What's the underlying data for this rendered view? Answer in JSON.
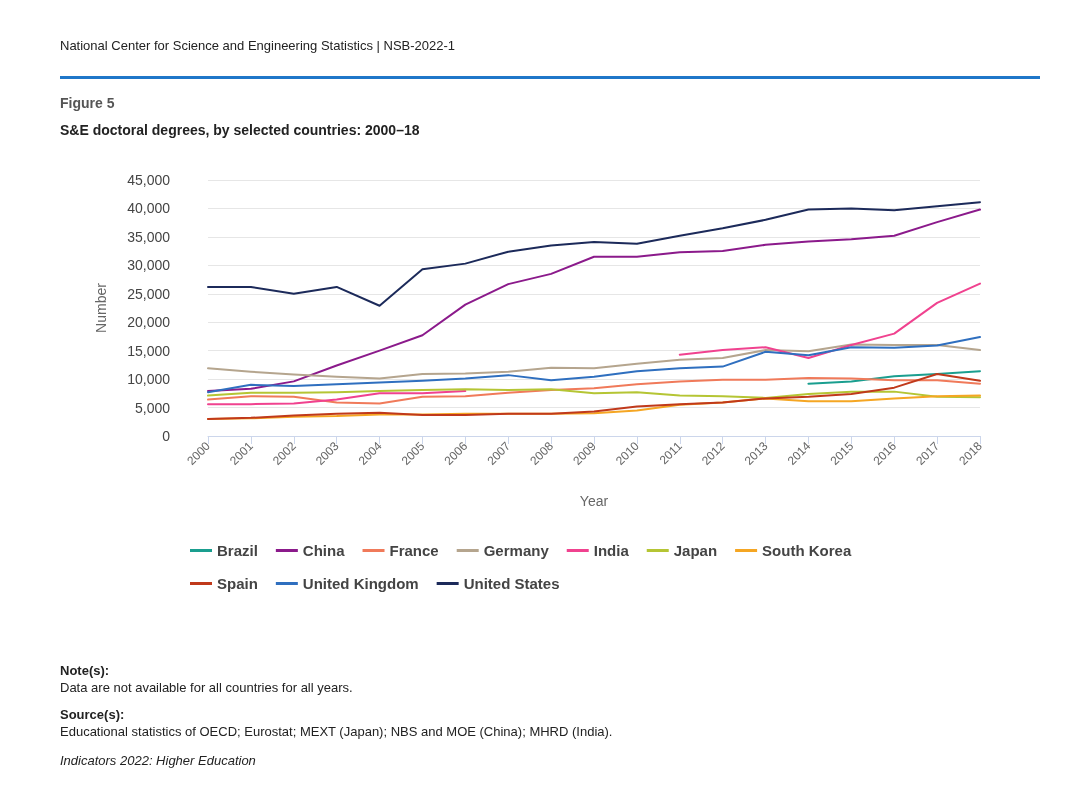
{
  "chart_data": {
    "type": "line",
    "title": "S&E doctoral degrees, by selected countries: 2000–18",
    "xlabel": "Year",
    "ylabel": "Number",
    "annotations": [
      "National Center for Science and Engineering Statistics  |  NSB-2022-1",
      "Figure 5",
      "Note(s):",
      "Data are not available for all countries for all years.",
      "Source(s):",
      "Educational statistics of OECD; Eurostat; MEXT (Japan); NBS and MOE (China); MHRD (India).",
      "Indicators 2022: Higher Education"
    ],
    "categories": [
      "2000",
      "2001",
      "2002",
      "2003",
      "2004",
      "2005",
      "2006",
      "2007",
      "2008",
      "2009",
      "2010",
      "2011",
      "2012",
      "2013",
      "2014",
      "2015",
      "2016",
      "2017",
      "2018"
    ],
    "ylim": [
      0,
      45000
    ],
    "yticks": [
      {
        "value": 0,
        "label": "0"
      },
      {
        "value": 5000,
        "label": "5,000"
      },
      {
        "value": 10000,
        "label": "10,000"
      },
      {
        "value": 15000,
        "label": "15,000"
      },
      {
        "value": 20000,
        "label": "20,000"
      },
      {
        "value": 25000,
        "label": "25,000"
      },
      {
        "value": 30000,
        "label": "30,000"
      },
      {
        "value": 35000,
        "label": "35,000"
      },
      {
        "value": 40000,
        "label": "40,000"
      },
      {
        "value": 45000,
        "label": "45,000"
      }
    ],
    "grid": "y",
    "legend": "bottom",
    "series": [
      {
        "name": "Brazil",
        "color": "#1a9e8f",
        "values": [
          null,
          null,
          null,
          null,
          null,
          null,
          null,
          null,
          null,
          null,
          null,
          null,
          null,
          null,
          9200,
          9600,
          10500,
          10900,
          11400
        ]
      },
      {
        "name": "China",
        "color": "#8b1a8b",
        "values": [
          7900,
          8300,
          9600,
          12400,
          15000,
          17700,
          23100,
          26700,
          28500,
          31500,
          31500,
          32300,
          32500,
          33600,
          34200,
          34600,
          35200,
          37600,
          39800
        ]
      },
      {
        "name": "France",
        "color": "#f07a5a",
        "values": [
          6400,
          7000,
          6900,
          5900,
          5700,
          6900,
          7000,
          7600,
          8100,
          8400,
          9100,
          9600,
          9900,
          9900,
          10200,
          10100,
          9800,
          9800,
          9200
        ]
      },
      {
        "name": "Germany",
        "color": "#b5a58e",
        "values": [
          11900,
          11300,
          10800,
          10400,
          10100,
          10900,
          11000,
          11300,
          12000,
          11900,
          12700,
          13400,
          13700,
          15100,
          14900,
          16100,
          16000,
          16000,
          15100
        ]
      },
      {
        "name": "India",
        "color": "#f0428f",
        "values": [
          5600,
          5600,
          5700,
          6400,
          7500,
          7500,
          7900,
          null,
          null,
          null,
          null,
          14300,
          15100,
          15600,
          13700,
          16000,
          18000,
          23400,
          26800
        ]
      },
      {
        "name": "Japan",
        "color": "#b5c534",
        "values": [
          7100,
          7600,
          7600,
          7700,
          7900,
          8100,
          8200,
          8100,
          8200,
          7500,
          7700,
          7100,
          7000,
          6700,
          7400,
          7800,
          7800,
          6900,
          6800
        ]
      },
      {
        "name": "South Korea",
        "color": "#f5a623",
        "values": [
          3000,
          3100,
          3400,
          3500,
          3800,
          3800,
          3900,
          3900,
          3900,
          4000,
          4500,
          5500,
          5900,
          6600,
          6100,
          6100,
          6600,
          7000,
          7100
        ]
      },
      {
        "name": "Spain",
        "color": "#c0391b",
        "values": [
          3000,
          3200,
          3600,
          3900,
          4100,
          3700,
          3700,
          3900,
          3900,
          4300,
          5200,
          5600,
          5900,
          6600,
          6900,
          7400,
          8500,
          10900,
          9700
        ]
      },
      {
        "name": "United Kingdom",
        "color": "#2f6fbf",
        "values": [
          7700,
          9000,
          8800,
          9100,
          9400,
          9700,
          10100,
          10700,
          9800,
          10400,
          11400,
          11900,
          12200,
          14800,
          14200,
          15600,
          15500,
          15900,
          17400
        ]
      },
      {
        "name": "United States",
        "color": "#1c2a5a",
        "values": [
          26200,
          26200,
          25000,
          26200,
          22900,
          29300,
          30300,
          32400,
          33500,
          34100,
          33800,
          35200,
          36500,
          38000,
          39800,
          40000,
          39700,
          40400,
          41100
        ]
      }
    ]
  }
}
